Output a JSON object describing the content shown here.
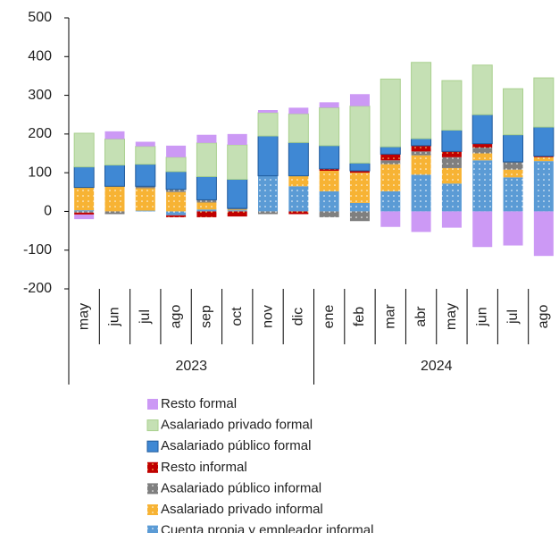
{
  "chart_data": {
    "type": "stacked_bar",
    "categories": [
      "may",
      "jun",
      "jul",
      "ago",
      "sep",
      "oct",
      "nov",
      "dic",
      "ene",
      "feb",
      "mar",
      "abr",
      "may",
      "jun",
      "jul",
      "ago"
    ],
    "groups": [
      {
        "label": "2023",
        "count": 8
      },
      {
        "label": "2024",
        "count": 8
      }
    ],
    "ylim": [
      -200,
      500
    ],
    "yticks": [
      -200,
      -100,
      0,
      100,
      200,
      300,
      400,
      500
    ],
    "series": [
      {
        "name": "Cuenta propia y empleador informal",
        "color": "#5b9bd5",
        "pattern": true,
        "values": [
          3,
          0,
          2,
          -10,
          5,
          3,
          92,
          65,
          52,
          22,
          52,
          95,
          72,
          132,
          88,
          130
        ]
      },
      {
        "name": "Asalariado privado informal",
        "color": "#f7b334",
        "pattern": true,
        "values": [
          59,
          65,
          58,
          50,
          18,
          2,
          0,
          27,
          53,
          78,
          70,
          50,
          40,
          18,
          20,
          10
        ]
      },
      {
        "name": "Asalariado público informal",
        "color": "#7f7f7f",
        "pattern": true,
        "values": [
          -3,
          -7,
          5,
          7,
          7,
          3,
          -7,
          0,
          -15,
          -25,
          10,
          10,
          28,
          15,
          20,
          0
        ]
      },
      {
        "name": "Resto informal",
        "color": "#c00000",
        "pattern": true,
        "values": [
          -5,
          0,
          0,
          -5,
          -15,
          -13,
          0,
          -7,
          5,
          5,
          16,
          15,
          15,
          10,
          0,
          3
        ]
      },
      {
        "name": "Asalariado público formal",
        "color": "#3f88d4",
        "pattern": false,
        "values": [
          53,
          55,
          57,
          46,
          60,
          75,
          103,
          86,
          60,
          20,
          19,
          18,
          55,
          75,
          70,
          75
        ]
      },
      {
        "name": "Asalariado privado formal",
        "color": "#c5e0b4",
        "pattern": false,
        "values": [
          87,
          67,
          46,
          37,
          87,
          89,
          60,
          74,
          98,
          147,
          175,
          197,
          128,
          128,
          119,
          127
        ]
      },
      {
        "name": "Resto formal",
        "color": "#cc99f5",
        "pattern": false,
        "values": [
          -12,
          20,
          12,
          30,
          21,
          28,
          7,
          16,
          14,
          31,
          -40,
          -53,
          -42,
          -92,
          -88,
          -115
        ]
      }
    ]
  }
}
